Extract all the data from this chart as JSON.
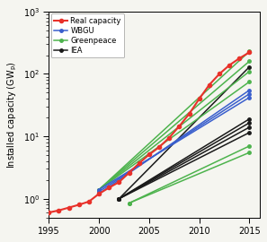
{
  "title": "",
  "ylabel": "Installed capacity (GW$_\\mathrm{p}$)",
  "xlabel": "",
  "xlim": [
    1995,
    2016
  ],
  "ylim_log": [
    0.5,
    1000
  ],
  "xticks": [
    1995,
    2000,
    2005,
    2010,
    2015
  ],
  "real_capacity": {
    "years": [
      1995,
      1996,
      1997,
      1998,
      1999,
      2000,
      2001,
      2002,
      2003,
      2004,
      2005,
      2006,
      2007,
      2008,
      2009,
      2010,
      2011,
      2012,
      2013,
      2014,
      2015
    ],
    "values": [
      0.6,
      0.65,
      0.72,
      0.8,
      0.9,
      1.2,
      1.5,
      1.85,
      2.6,
      3.7,
      5.1,
      6.7,
      9.5,
      14.5,
      23.0,
      40.0,
      67.0,
      100.0,
      138.0,
      178.0,
      222.0
    ],
    "color": "#e8312a",
    "marker": "o",
    "linewidth": 1.5,
    "markersize": 3.0
  },
  "wbgu_scenarios": [
    {
      "years": [
        2000,
        2015
      ],
      "values": [
        1.2,
        55.0
      ]
    },
    {
      "years": [
        2000,
        2015
      ],
      "values": [
        1.3,
        48.0
      ]
    },
    {
      "years": [
        2000,
        2015
      ],
      "values": [
        1.4,
        42.0
      ]
    }
  ],
  "wbgu_color": "#3a5fcd",
  "wbgu_marker": "o",
  "wbgu_linewidth": 1.1,
  "wbgu_markersize": 2.5,
  "greenpeace_scenarios": [
    {
      "years": [
        2000,
        2015
      ],
      "values": [
        1.4,
        230.0
      ]
    },
    {
      "years": [
        2000,
        2015
      ],
      "values": [
        1.4,
        160.0
      ]
    },
    {
      "years": [
        2000,
        2015
      ],
      "values": [
        1.4,
        110.0
      ]
    },
    {
      "years": [
        2000,
        2015
      ],
      "values": [
        1.4,
        75.0
      ]
    },
    {
      "years": [
        2003,
        2015
      ],
      "values": [
        0.85,
        7.0
      ]
    },
    {
      "years": [
        2003,
        2015
      ],
      "values": [
        0.85,
        5.5
      ]
    }
  ],
  "greenpeace_color": "#4db34d",
  "greenpeace_marker": "o",
  "greenpeace_linewidth": 1.1,
  "greenpeace_markersize": 2.5,
  "iea_scenarios": [
    {
      "years": [
        2002,
        2015
      ],
      "values": [
        1.0,
        130.0
      ]
    },
    {
      "years": [
        2002,
        2015
      ],
      "values": [
        1.0,
        19.0
      ]
    },
    {
      "years": [
        2002,
        2015
      ],
      "values": [
        1.0,
        16.5
      ]
    },
    {
      "years": [
        2002,
        2015
      ],
      "values": [
        1.0,
        14.0
      ]
    },
    {
      "years": [
        2002,
        2015
      ],
      "values": [
        1.0,
        11.5
      ]
    }
  ],
  "iea_color": "#1a1a1a",
  "iea_marker": "o",
  "iea_linewidth": 1.1,
  "iea_markersize": 2.5,
  "legend_labels": [
    "Real capacity",
    "WBGU",
    "Greenpeace",
    "IEA"
  ],
  "legend_colors": [
    "#e8312a",
    "#3a5fcd",
    "#4db34d",
    "#1a1a1a"
  ],
  "background_color": "#f5f5f0"
}
